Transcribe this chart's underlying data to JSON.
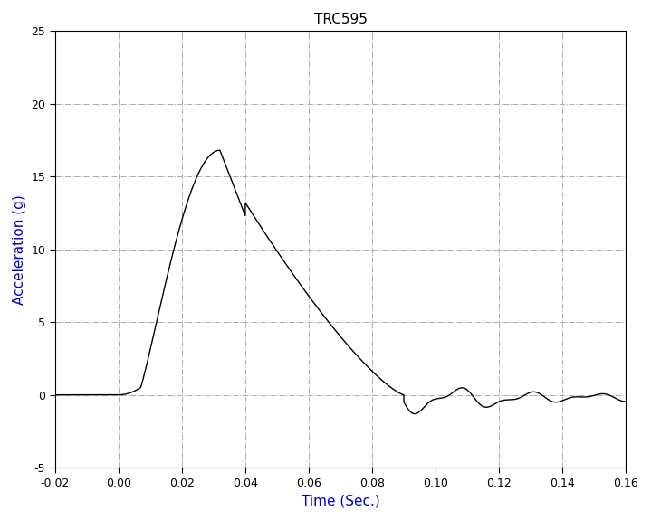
{
  "title": "TRC595",
  "xlabel": "Time (Sec.)",
  "ylabel": "Acceleration (g)",
  "xlim": [
    -0.02,
    0.16
  ],
  "ylim": [
    -5,
    25
  ],
  "xticks": [
    -0.02,
    0.0,
    0.02,
    0.04,
    0.06,
    0.08,
    0.1,
    0.12,
    0.14,
    0.16
  ],
  "yticks": [
    -5,
    0,
    5,
    10,
    15,
    20,
    25
  ],
  "line_color": "#000000",
  "axis_label_color": "#0000cc",
  "title_color": "#000000",
  "background_color": "#ffffff",
  "grid_color": "#aaaaaa",
  "title_fontsize": 11,
  "label_fontsize": 11,
  "tick_fontsize": 9
}
